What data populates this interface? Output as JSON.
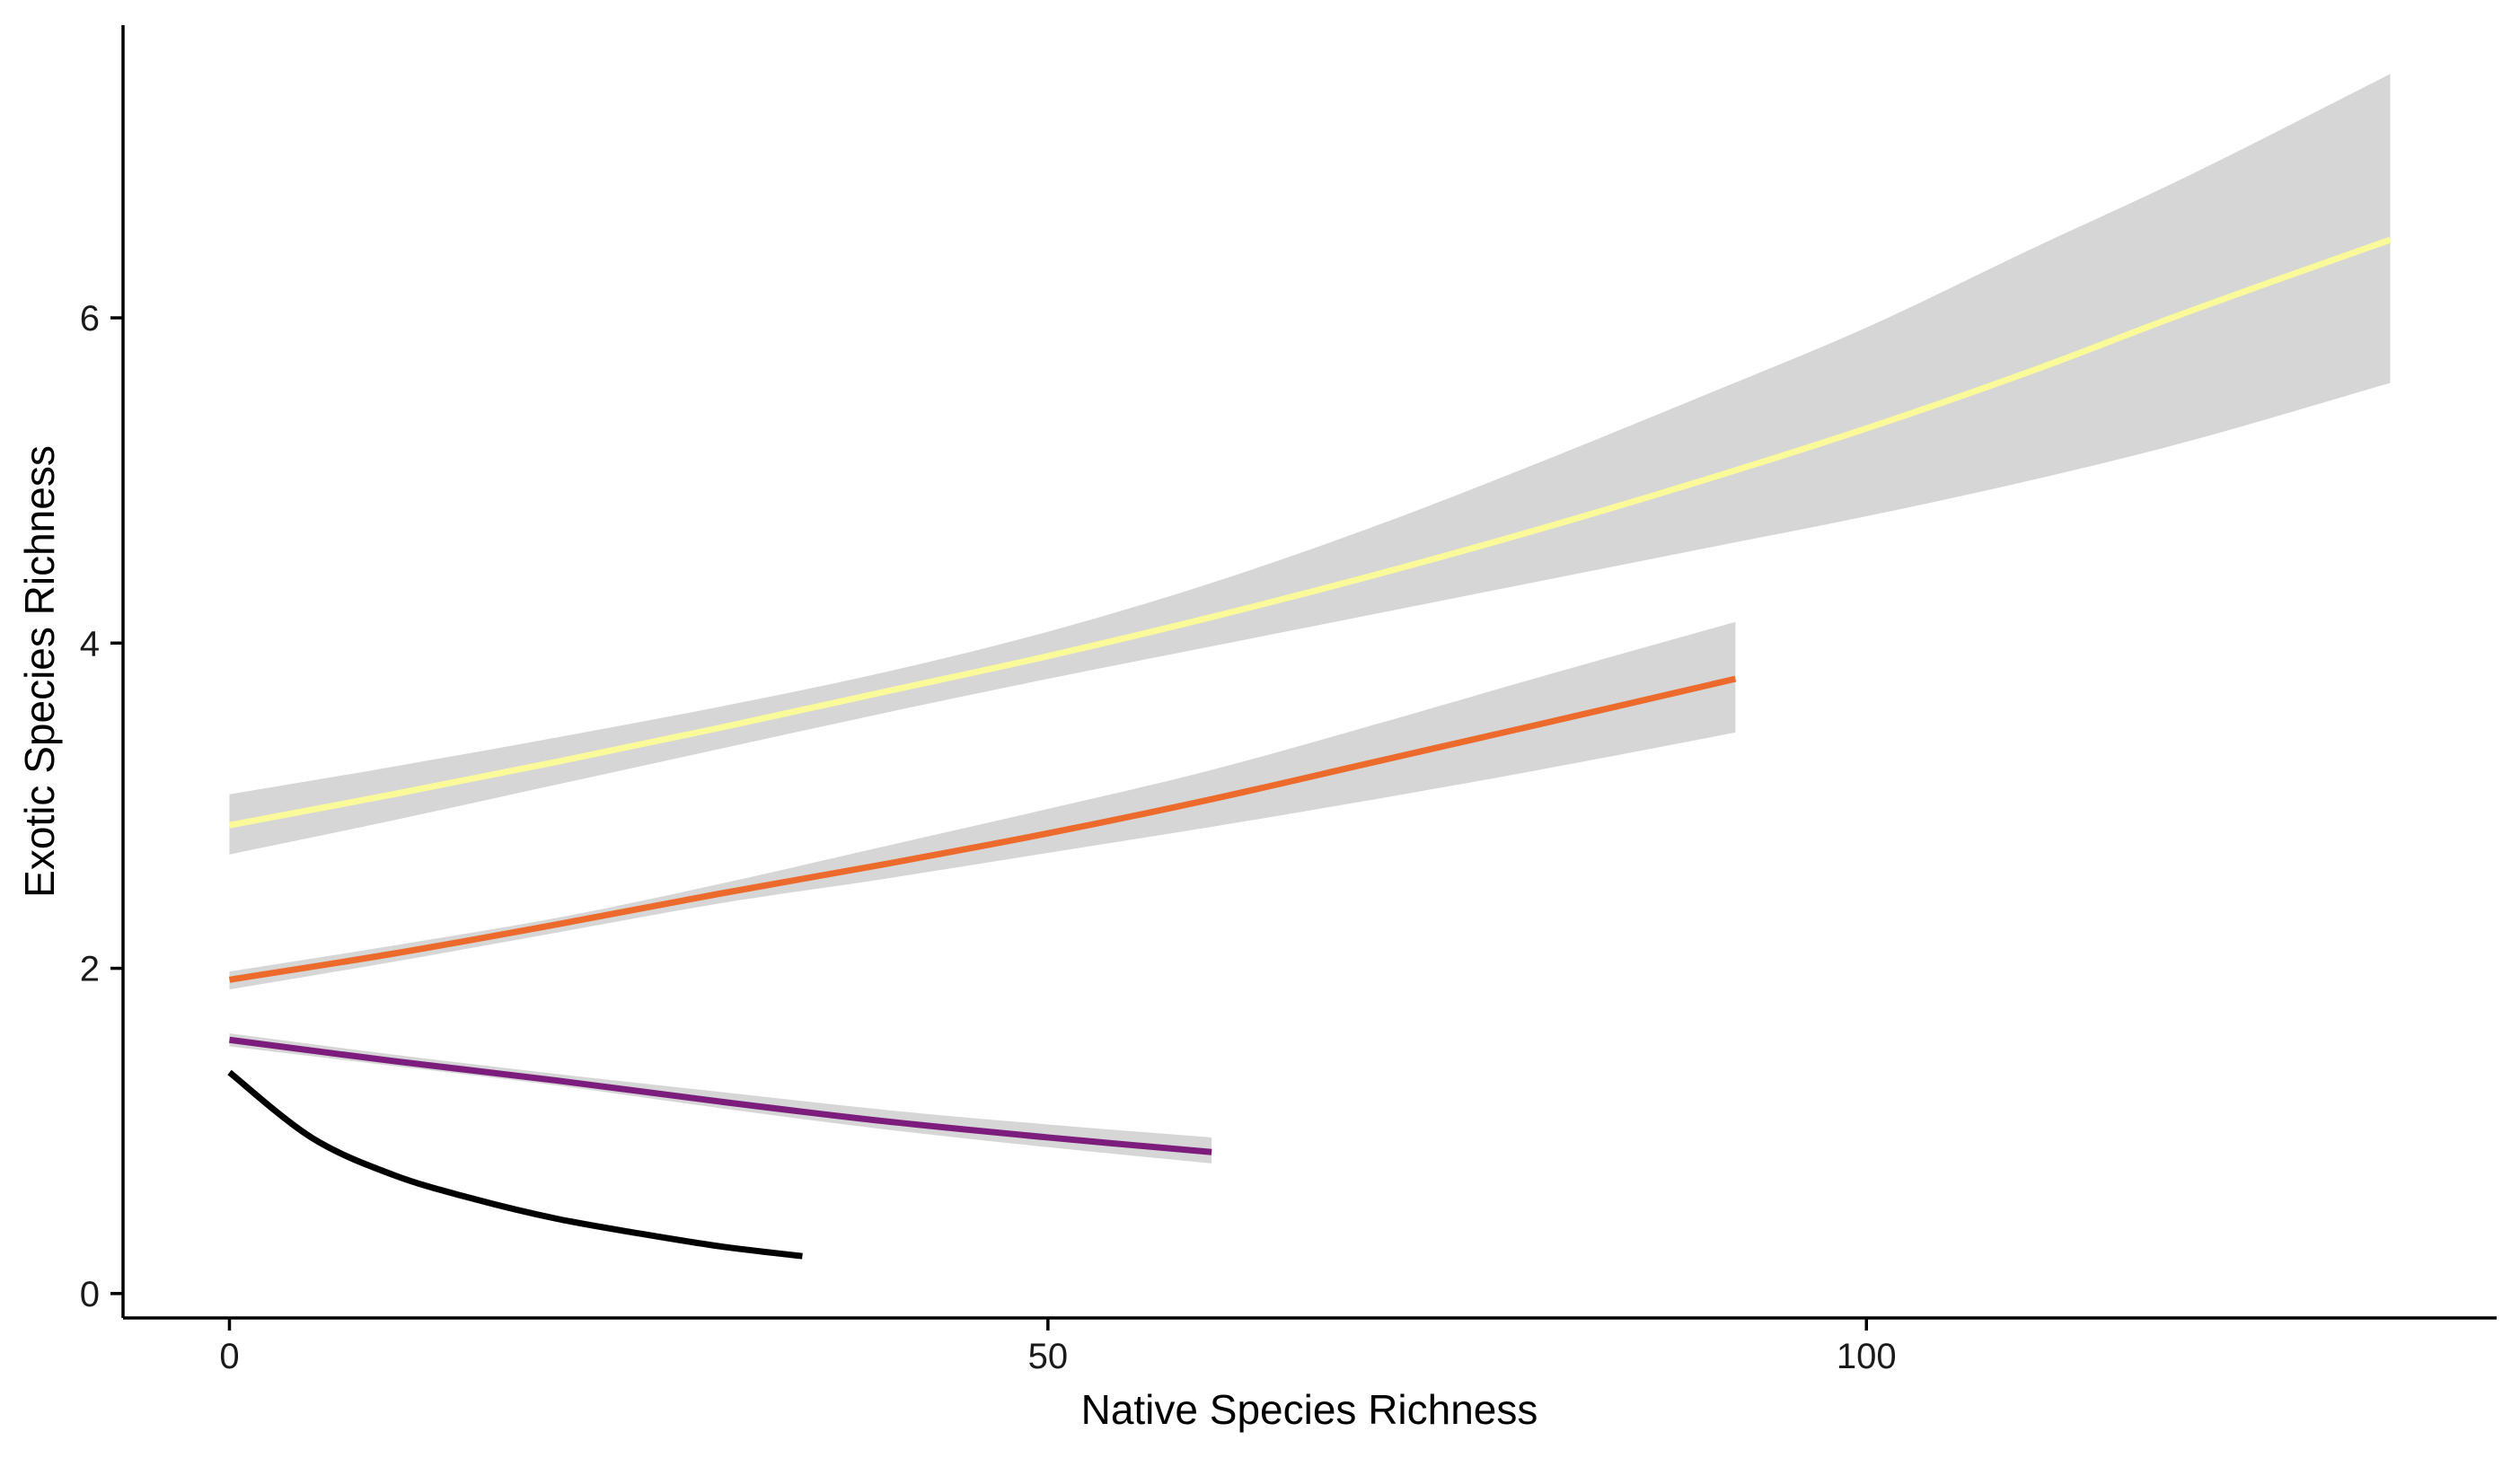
{
  "chart_data": {
    "type": "line",
    "title": "",
    "xlabel": "Native Species Richness",
    "ylabel": "Exotic Species Richness",
    "xlim": [
      -6.5,
      138.5
    ],
    "ylim": [
      -0.15,
      7.8
    ],
    "xticks": [
      0,
      50,
      100
    ],
    "yticks": [
      0,
      2,
      4,
      6
    ],
    "grid": false,
    "legend": "none",
    "series": [
      {
        "color": "#fafa9a",
        "x": [
          0,
          10,
          20,
          30,
          40,
          50,
          60,
          70,
          80,
          90,
          100,
          110,
          120,
          132
        ],
        "y": [
          2.88,
          3.07,
          3.27,
          3.48,
          3.7,
          3.92,
          4.16,
          4.42,
          4.7,
          5.0,
          5.32,
          5.67,
          6.05,
          6.48
        ],
        "lower": [
          2.7,
          2.91,
          3.13,
          3.35,
          3.57,
          3.78,
          3.98,
          4.18,
          4.38,
          4.58,
          4.78,
          5.0,
          5.25,
          5.6
        ],
        "upper": [
          3.07,
          3.24,
          3.42,
          3.61,
          3.82,
          4.07,
          4.37,
          4.72,
          5.11,
          5.52,
          5.94,
          6.42,
          6.89,
          7.5
        ]
      },
      {
        "color": "#ec6a2c",
        "x": [
          0,
          10,
          20,
          30,
          40,
          50,
          60,
          70,
          80,
          92
        ],
        "y": [
          1.93,
          2.09,
          2.27,
          2.46,
          2.64,
          2.83,
          3.04,
          3.27,
          3.5,
          3.78
        ],
        "lower": [
          1.87,
          2.04,
          2.22,
          2.4,
          2.55,
          2.71,
          2.87,
          3.04,
          3.22,
          3.45
        ],
        "upper": [
          1.98,
          2.14,
          2.31,
          2.52,
          2.75,
          2.98,
          3.22,
          3.5,
          3.79,
          4.13
        ]
      },
      {
        "color": "#7c1d7d",
        "x": [
          0,
          10,
          20,
          30,
          40,
          50,
          60
        ],
        "y": [
          1.56,
          1.43,
          1.31,
          1.18,
          1.06,
          0.96,
          0.87
        ],
        "lower": [
          1.52,
          1.4,
          1.28,
          1.14,
          1.01,
          0.9,
          0.8
        ],
        "upper": [
          1.6,
          1.47,
          1.35,
          1.24,
          1.13,
          1.04,
          0.96
        ]
      },
      {
        "color": "#000000",
        "x": [
          0,
          5,
          10,
          15,
          20,
          25,
          30,
          35
        ],
        "y": [
          1.36,
          0.96,
          0.73,
          0.58,
          0.46,
          0.37,
          0.29,
          0.23
        ]
      }
    ]
  }
}
